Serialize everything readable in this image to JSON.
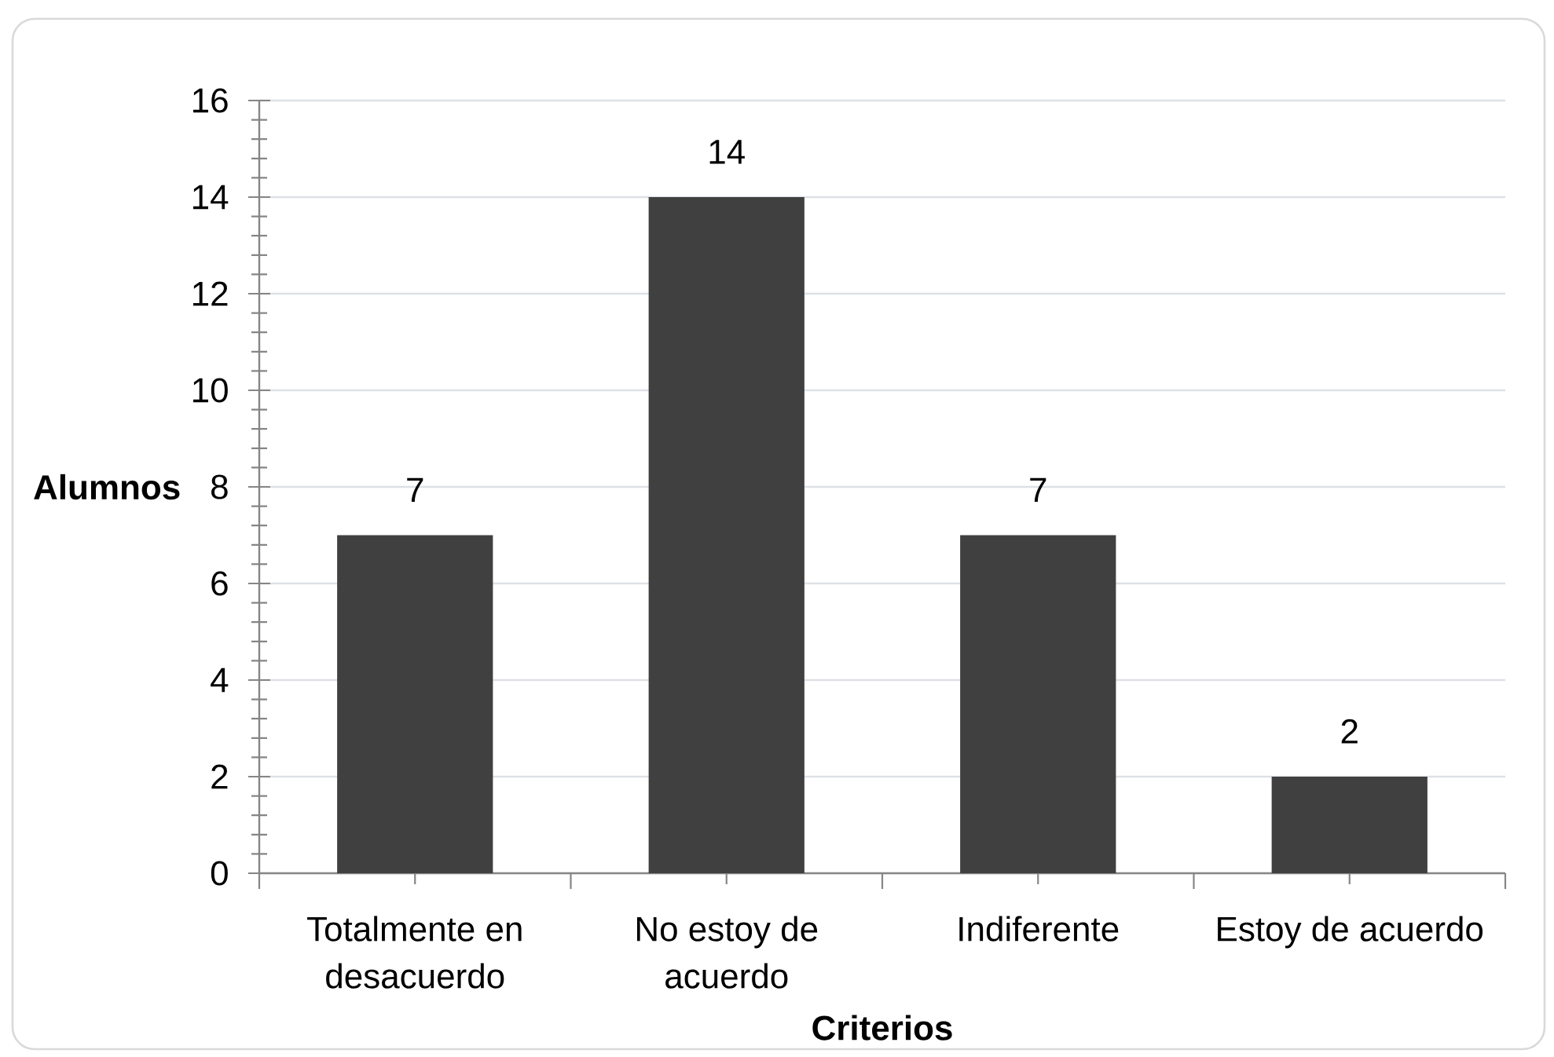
{
  "chart_data": {
    "type": "bar",
    "xlabel": "Criterios",
    "ylabel": "Alumnos",
    "categories": [
      "Totalmente en desacuerdo",
      "No estoy de acuerdo",
      "Indiferente",
      "Estoy de acuerdo"
    ],
    "values": [
      7,
      14,
      7,
      2
    ],
    "color": "#404040",
    "ylim": [
      0,
      16
    ],
    "yticks": [
      0,
      2,
      4,
      6,
      8,
      10,
      12,
      14,
      16
    ],
    "grid": "y",
    "data_labels": true
  }
}
